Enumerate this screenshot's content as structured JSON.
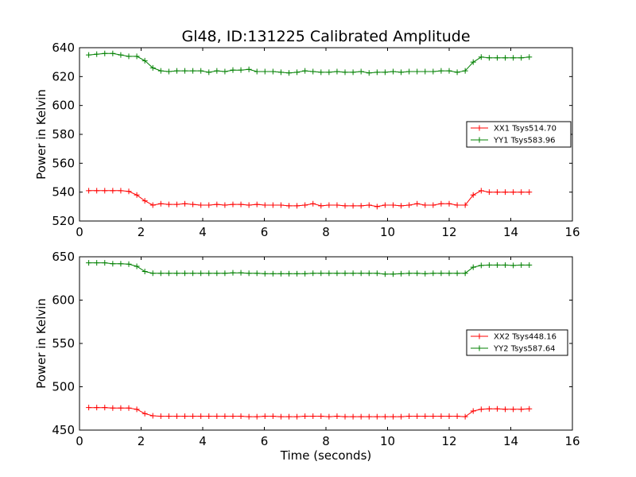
{
  "chart_data": [
    {
      "type": "line",
      "title": "Gl48, ID:131225 Calibrated Amplitude",
      "xlabel": "",
      "ylabel": "Power in Kelvin",
      "xlim": [
        0,
        16
      ],
      "ylim": [
        520,
        640
      ],
      "xticks": [
        0,
        2,
        4,
        6,
        8,
        10,
        12,
        14,
        16
      ],
      "yticks": [
        520,
        540,
        560,
        580,
        600,
        620,
        640
      ],
      "grid": false,
      "legend_position": "right",
      "marker": "+",
      "x": [
        0.3,
        0.56,
        0.82,
        1.08,
        1.34,
        1.6,
        1.86,
        2.12,
        2.38,
        2.64,
        2.9,
        3.16,
        3.42,
        3.68,
        3.94,
        4.2,
        4.46,
        4.72,
        4.98,
        5.24,
        5.5,
        5.76,
        6.02,
        6.28,
        6.54,
        6.8,
        7.06,
        7.32,
        7.58,
        7.84,
        8.1,
        8.36,
        8.62,
        8.88,
        9.14,
        9.4,
        9.66,
        9.92,
        10.18,
        10.44,
        10.7,
        10.96,
        11.22,
        11.48,
        11.74,
        12.0,
        12.26,
        12.52,
        12.78,
        13.04,
        13.3,
        13.56,
        13.82,
        14.08,
        14.34,
        14.6
      ],
      "series": [
        {
          "name": "XX1 Tsys514.70",
          "color": "#ff0000",
          "values": [
            541,
            541,
            541,
            541,
            541,
            540.5,
            538,
            534,
            531,
            532,
            531.5,
            531.5,
            532,
            531.5,
            531,
            531,
            531.5,
            531,
            531.5,
            531.5,
            531,
            531.5,
            531,
            531,
            531,
            530.5,
            530.5,
            531,
            532,
            530.5,
            531,
            531,
            530.5,
            530.5,
            530.5,
            531,
            530,
            531,
            531,
            530.5,
            531,
            532,
            531,
            531,
            532,
            532,
            531,
            531,
            538,
            541,
            540,
            540,
            540,
            540,
            540,
            540
          ]
        },
        {
          "name": "YY1 Tsys583.96",
          "color": "#008000",
          "values": [
            635,
            635.5,
            636,
            636,
            635,
            634,
            634,
            631,
            626,
            624,
            623.5,
            624,
            624,
            624,
            624,
            623,
            624,
            623.5,
            624.5,
            624.5,
            625,
            623.5,
            623.5,
            623.5,
            623,
            622.5,
            623,
            624,
            623.5,
            623,
            623,
            623.5,
            623,
            623,
            623.5,
            622.5,
            623,
            623,
            623.5,
            623,
            623.5,
            623.5,
            623.5,
            623.5,
            624,
            624,
            623,
            624,
            630,
            633.5,
            633,
            633,
            633,
            633,
            633,
            633.5
          ]
        }
      ]
    },
    {
      "type": "line",
      "title": "",
      "xlabel": "Time (seconds)",
      "ylabel": "Power in Kelvin",
      "xlim": [
        0,
        16
      ],
      "ylim": [
        450,
        650
      ],
      "xticks": [
        0,
        2,
        4,
        6,
        8,
        10,
        12,
        14,
        16
      ],
      "yticks": [
        450,
        500,
        550,
        600,
        650
      ],
      "grid": false,
      "legend_position": "right",
      "marker": "+",
      "x": [
        0.3,
        0.56,
        0.82,
        1.08,
        1.34,
        1.6,
        1.86,
        2.12,
        2.38,
        2.64,
        2.9,
        3.16,
        3.42,
        3.68,
        3.94,
        4.2,
        4.46,
        4.72,
        4.98,
        5.24,
        5.5,
        5.76,
        6.02,
        6.28,
        6.54,
        6.8,
        7.06,
        7.32,
        7.58,
        7.84,
        8.1,
        8.36,
        8.62,
        8.88,
        9.14,
        9.4,
        9.66,
        9.92,
        10.18,
        10.44,
        10.7,
        10.96,
        11.22,
        11.48,
        11.74,
        12.0,
        12.26,
        12.52,
        12.78,
        13.04,
        13.3,
        13.56,
        13.82,
        14.08,
        14.34,
        14.6
      ],
      "series": [
        {
          "name": "XX2 Tsys448.16",
          "color": "#ff0000",
          "values": [
            476,
            476,
            476,
            475.5,
            475.5,
            475.5,
            474,
            469,
            466.5,
            466,
            466,
            466,
            466,
            466,
            466,
            466,
            466,
            466,
            466,
            466,
            465.5,
            465.5,
            466,
            466,
            465.5,
            465.5,
            465.5,
            466,
            466,
            466,
            465.5,
            466,
            465.5,
            465.5,
            465.5,
            465.5,
            465.5,
            465.5,
            465.5,
            465.5,
            466,
            466,
            466,
            466,
            466,
            466,
            466,
            465.5,
            472,
            474,
            474.5,
            474.5,
            474,
            474,
            474,
            474.5
          ]
        },
        {
          "name": "YY2 Tsys587.64",
          "color": "#008000",
          "values": [
            643,
            643,
            643,
            642,
            642,
            641.5,
            639,
            633,
            631,
            631,
            631,
            631,
            631,
            631,
            631,
            631,
            631,
            631,
            631.5,
            631.5,
            631,
            631,
            630.5,
            630.5,
            630.5,
            630.5,
            630.5,
            630.5,
            631,
            631,
            631,
            631,
            631,
            631,
            631,
            631,
            631,
            630,
            630,
            630.5,
            631,
            631,
            630.5,
            631,
            631,
            631,
            631,
            631,
            638,
            640,
            640.5,
            640.5,
            640.5,
            640,
            640.5,
            640.5
          ]
        }
      ]
    }
  ]
}
